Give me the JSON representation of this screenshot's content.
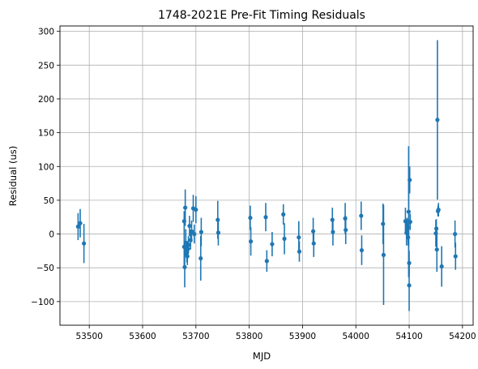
{
  "chart_data": {
    "type": "scatter",
    "title": "1748-2021E Pre-Fit Timing Residuals",
    "xlabel": "MJD",
    "ylabel": "Residual (us)",
    "xlim": [
      53445,
      54220
    ],
    "ylim": [
      -135,
      308
    ],
    "xticks": [
      53500,
      53600,
      53700,
      53800,
      53900,
      54000,
      54100,
      54200
    ],
    "yticks": [
      -100,
      -50,
      0,
      50,
      100,
      150,
      200,
      250,
      300
    ],
    "grid": true,
    "color": "#1f77b4",
    "series": [
      {
        "points": [
          {
            "x": 53479,
            "y": 11,
            "err": 20
          },
          {
            "x": 53483,
            "y": 16,
            "err": 21
          },
          {
            "x": 53490,
            "y": -14,
            "err": 29
          },
          {
            "x": 53678,
            "y": -19,
            "err": 30
          },
          {
            "x": 53678,
            "y": 19,
            "err": 15
          },
          {
            "x": 53679,
            "y": -49,
            "err": 30
          },
          {
            "x": 53680,
            "y": 39,
            "err": 27
          },
          {
            "x": 53681,
            "y": -13,
            "err": 20
          },
          {
            "x": 53683,
            "y": -28,
            "err": 14
          },
          {
            "x": 53684,
            "y": -33,
            "err": 13
          },
          {
            "x": 53685,
            "y": -22,
            "err": 12
          },
          {
            "x": 53686,
            "y": -16,
            "err": 13
          },
          {
            "x": 53688,
            "y": 12,
            "err": 15
          },
          {
            "x": 53690,
            "y": -9,
            "err": 14
          },
          {
            "x": 53692,
            "y": 4,
            "err": 16
          },
          {
            "x": 53695,
            "y": 38,
            "err": 20
          },
          {
            "x": 53697,
            "y": 0,
            "err": 14
          },
          {
            "x": 53700,
            "y": 36,
            "err": 20
          },
          {
            "x": 53709,
            "y": -36,
            "err": 33
          },
          {
            "x": 53710,
            "y": 3,
            "err": 21
          },
          {
            "x": 53741,
            "y": 21,
            "err": 28
          },
          {
            "x": 53742,
            "y": 2,
            "err": 19
          },
          {
            "x": 53802,
            "y": 24,
            "err": 18
          },
          {
            "x": 53803,
            "y": -11,
            "err": 21
          },
          {
            "x": 53831,
            "y": 25,
            "err": 21
          },
          {
            "x": 53833,
            "y": -40,
            "err": 16
          },
          {
            "x": 53843,
            "y": -15,
            "err": 18
          },
          {
            "x": 53864,
            "y": 29,
            "err": 15
          },
          {
            "x": 53866,
            "y": -7,
            "err": 23
          },
          {
            "x": 53893,
            "y": -5,
            "err": 24
          },
          {
            "x": 53894,
            "y": -26,
            "err": 15
          },
          {
            "x": 53920,
            "y": 4,
            "err": 20
          },
          {
            "x": 53921,
            "y": -14,
            "err": 20
          },
          {
            "x": 53956,
            "y": 21,
            "err": 18
          },
          {
            "x": 53957,
            "y": 3,
            "err": 20
          },
          {
            "x": 53980,
            "y": 23,
            "err": 23
          },
          {
            "x": 53981,
            "y": 6,
            "err": 21
          },
          {
            "x": 54010,
            "y": 27,
            "err": 21
          },
          {
            "x": 54011,
            "y": -24,
            "err": 22
          },
          {
            "x": 54051,
            "y": 15,
            "err": 30
          },
          {
            "x": 54052,
            "y": -31,
            "err": 74
          },
          {
            "x": 54093,
            "y": 19,
            "err": 20
          },
          {
            "x": 54095,
            "y": 2,
            "err": 19
          },
          {
            "x": 54096,
            "y": 14,
            "err": 10
          },
          {
            "x": 54097,
            "y": 10,
            "err": 12
          },
          {
            "x": 54098,
            "y": -5,
            "err": 12
          },
          {
            "x": 54099,
            "y": 33,
            "err": 97
          },
          {
            "x": 54100,
            "y": -76,
            "err": 38
          },
          {
            "x": 54101,
            "y": 80,
            "err": 20
          },
          {
            "x": 54102,
            "y": 18,
            "err": 12
          },
          {
            "x": 54100,
            "y": -43,
            "err": 18
          },
          {
            "x": 54150,
            "y": 1,
            "err": 20
          },
          {
            "x": 54151,
            "y": 8,
            "err": 14
          },
          {
            "x": 54152,
            "y": -23,
            "err": 33
          },
          {
            "x": 54153,
            "y": 169,
            "err": 118
          },
          {
            "x": 54154,
            "y": 34,
            "err": 8
          },
          {
            "x": 54155,
            "y": 36,
            "err": 10
          },
          {
            "x": 54161,
            "y": -48,
            "err": 30
          },
          {
            "x": 54186,
            "y": 0,
            "err": 20
          },
          {
            "x": 54187,
            "y": -33,
            "err": 20
          }
        ]
      }
    ]
  }
}
